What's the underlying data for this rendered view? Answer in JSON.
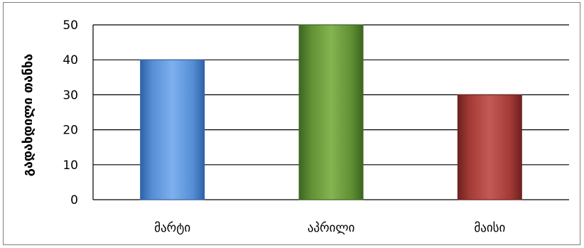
{
  "chart_data": {
    "type": "bar",
    "categories": [
      "მარტი",
      "აპრილი",
      "მაისი"
    ],
    "values": [
      40,
      50,
      30
    ],
    "ylabel": "გადახდილი თანხა",
    "xlabel": "",
    "ylim": [
      0,
      50
    ],
    "yticks": [
      0,
      10,
      20,
      30,
      40,
      50
    ],
    "grid": true,
    "legend": "none",
    "bar_colors": [
      "#558ed5",
      "#5f8f32",
      "#a33a36"
    ],
    "bar_colors_dark": [
      "#2f62a6",
      "#3b6620",
      "#6e211f"
    ],
    "bar_colors_light": [
      "#7fb0ee",
      "#84b552",
      "#c45a55"
    ]
  }
}
